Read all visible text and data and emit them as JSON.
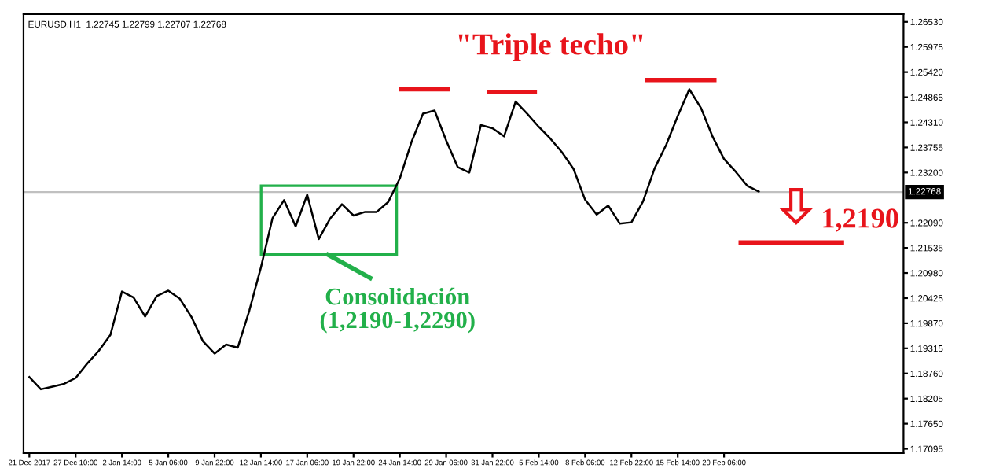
{
  "chart_data": {
    "type": "line",
    "subtitle": "EURUSD,H1  1.22745 1.22799 1.22707 1.22768",
    "categories": [
      "21 Dec 2017",
      null,
      null,
      null,
      "27 Dec 10:00",
      null,
      null,
      null,
      "2 Jan 14:00",
      null,
      null,
      null,
      "5 Jan 06:00",
      null,
      null,
      null,
      "9 Jan 22:00",
      null,
      null,
      null,
      "12 Jan 14:00",
      null,
      null,
      null,
      "17 Jan 06:00",
      null,
      null,
      null,
      "19 Jan 22:00",
      null,
      null,
      null,
      "24 Jan 14:00",
      null,
      null,
      null,
      "29 Jan 06:00",
      null,
      null,
      null,
      "31 Jan 22:00",
      null,
      null,
      null,
      "5 Feb 14:00",
      null,
      null,
      null,
      "8 Feb 06:00",
      null,
      null,
      null,
      "12 Feb 22:00",
      null,
      null,
      null,
      "15 Feb 14:00",
      null,
      null,
      null,
      "20 Feb 06:00",
      null,
      null,
      null,
      null,
      null,
      null,
      null,
      null,
      null,
      null,
      null,
      null,
      null,
      null,
      null
    ],
    "series": [
      {
        "color": "#000000",
        "values": [
          1.1868,
          1.1841,
          1.1847,
          1.1853,
          1.1866,
          1.1898,
          1.1926,
          1.1961,
          1.2057,
          1.2044,
          1.2002,
          1.2047,
          1.2059,
          1.2041,
          1.2001,
          1.1947,
          1.192,
          1.194,
          1.1933,
          1.2015,
          1.211,
          1.2219,
          1.2259,
          1.2201,
          1.2271,
          1.2173,
          1.2219,
          1.225,
          1.2225,
          1.2233,
          1.2233,
          1.2255,
          1.2307,
          1.2387,
          1.245,
          1.2457,
          1.2391,
          1.2332,
          1.232,
          1.2425,
          1.2418,
          1.24,
          1.2477,
          1.245,
          1.2421,
          1.2395,
          1.2365,
          1.2328,
          1.226,
          1.2227,
          1.2247,
          1.2207,
          1.221,
          1.2256,
          1.2329,
          1.2381,
          1.2445,
          1.2504,
          1.2463,
          1.24,
          1.235,
          1.2322,
          1.2291,
          1.2278,
          null,
          null,
          null,
          null,
          null,
          null,
          null,
          null,
          null,
          null,
          null,
          null
        ]
      }
    ],
    "ylim": [
      1.17,
      1.267
    ],
    "yticks": [
      {
        "value": 1.2653,
        "label": "1.26530"
      },
      {
        "value": 1.25975,
        "label": "1.25975"
      },
      {
        "value": 1.2542,
        "label": "1.25420"
      },
      {
        "value": 1.24865,
        "label": "1.24865"
      },
      {
        "value": 1.2431,
        "label": "1.24310"
      },
      {
        "value": 1.23755,
        "label": "1.23755"
      },
      {
        "value": 1.232,
        "label": "1.23200"
      },
      {
        "value": 1.2209,
        "label": "1.22090"
      },
      {
        "value": 1.21535,
        "label": "1.21535"
      },
      {
        "value": 1.2098,
        "label": "1.20980"
      },
      {
        "value": 1.20425,
        "label": "1.20425"
      },
      {
        "value": 1.1987,
        "label": "1.19870"
      },
      {
        "value": 1.19315,
        "label": "1.19315"
      },
      {
        "value": 1.1876,
        "label": "1.18760"
      },
      {
        "value": 1.18205,
        "label": "1.18205"
      },
      {
        "value": 1.1765,
        "label": "1.17650"
      },
      {
        "value": 1.17095,
        "label": "1.17095"
      }
    ],
    "ref_lines": [
      {
        "axis": "y",
        "value": 1.22768,
        "label": "1.22768",
        "color": "#c0c0c0"
      }
    ],
    "annotations": [
      "\"Triple techo\"",
      "Consolidación\n(1,2190-1,2290)",
      "1,2190"
    ],
    "grid": false,
    "legend": false,
    "marker": "none",
    "line_style": "solid"
  }
}
